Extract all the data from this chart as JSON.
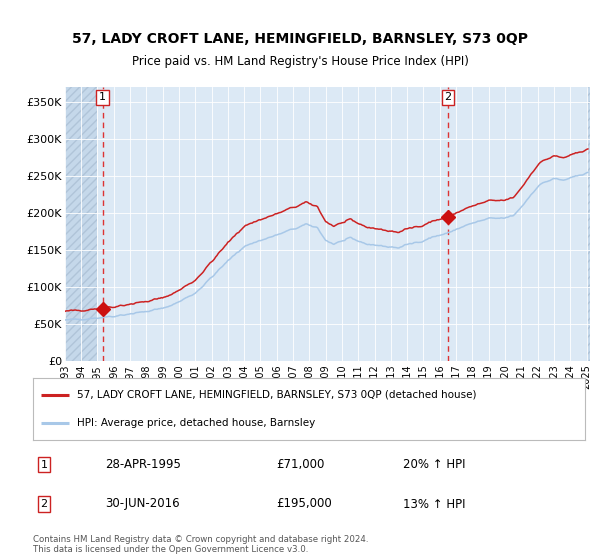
{
  "title_line1": "57, LADY CROFT LANE, HEMINGFIELD, BARNSLEY, S73 0QP",
  "title_line2": "Price paid vs. HM Land Registry's House Price Index (HPI)",
  "legend_label1": "57, LADY CROFT LANE, HEMINGFIELD, BARNSLEY, S73 0QP (detached house)",
  "legend_label2": "HPI: Average price, detached house, Barnsley",
  "annotation1_date": "28-APR-1995",
  "annotation1_price": "£71,000",
  "annotation1_hpi": "20% ↑ HPI",
  "annotation2_date": "30-JUN-2016",
  "annotation2_price": "£195,000",
  "annotation2_hpi": "13% ↑ HPI",
  "footer": "Contains HM Land Registry data © Crown copyright and database right 2024.\nThis data is licensed under the Open Government Licence v3.0.",
  "sale1_year": 1995.32,
  "sale1_value": 71000,
  "sale2_year": 2016.5,
  "sale2_value": 195000,
  "hpi_color": "#a8c8e8",
  "price_color": "#cc2222",
  "marker_color": "#cc1111",
  "dashed_line_color": "#dd3333",
  "bg_color": "#dce9f5",
  "grid_color": "#ffffff",
  "ylim_max": 370000,
  "ylim_min": 0,
  "xmin": 1993,
  "xmax": 2025.2
}
